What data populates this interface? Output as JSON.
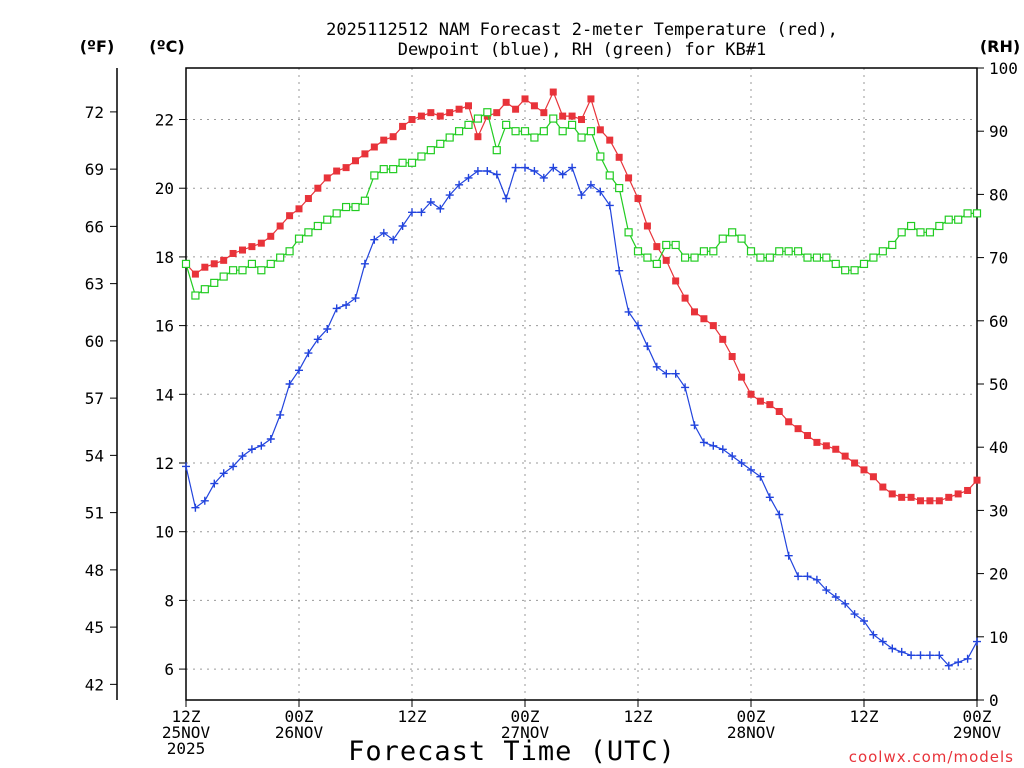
{
  "chart_data": {
    "type": "line",
    "title_line1": "2025112512 NAM Forecast 2-meter Temperature (red),",
    "title_line2": "Dewpoint (blue), RH (green) for KB#1",
    "xlabel": "Forecast Time (UTC)",
    "credit": "coolwx.com/models",
    "units": {
      "fahrenheit": "(ºF)",
      "celsius": "(ºC)",
      "rh": "(RH)"
    },
    "y_celsius": {
      "lim": [
        5.1,
        23.5
      ],
      "ticks": [
        6,
        8,
        10,
        12,
        14,
        16,
        18,
        20,
        22
      ]
    },
    "y_fahrenheit": {
      "ticks": [
        42,
        45,
        48,
        51,
        54,
        57,
        60,
        63,
        66,
        69,
        72
      ]
    },
    "y_rh": {
      "lim": [
        0,
        100
      ],
      "ticks": [
        0,
        10,
        20,
        30,
        40,
        50,
        60,
        70,
        80,
        90,
        100
      ]
    },
    "x_hours": {
      "lim": [
        0,
        84
      ]
    },
    "x_ticks": [
      {
        "hour": 0,
        "lines": [
          "12Z",
          "25NOV",
          "2025"
        ]
      },
      {
        "hour": 12,
        "lines": [
          "00Z",
          "26NOV"
        ]
      },
      {
        "hour": 24,
        "lines": [
          "12Z"
        ]
      },
      {
        "hour": 36,
        "lines": [
          "00Z",
          "27NOV"
        ]
      },
      {
        "hour": 48,
        "lines": [
          "12Z"
        ]
      },
      {
        "hour": 60,
        "lines": [
          "00Z",
          "28NOV"
        ]
      },
      {
        "hour": 72,
        "lines": [
          "12Z"
        ]
      },
      {
        "hour": 84,
        "lines": [
          "00Z",
          "29NOV"
        ]
      }
    ],
    "series": [
      {
        "name": "Temperature",
        "axis": "celsius",
        "color": "#e8333a",
        "marker": "filled-square",
        "hours": [
          0,
          1,
          2,
          3,
          4,
          5,
          6,
          7,
          8,
          9,
          10,
          11,
          12,
          13,
          14,
          15,
          16,
          17,
          18,
          19,
          20,
          21,
          22,
          23,
          24,
          25,
          26,
          27,
          28,
          29,
          30,
          31,
          32,
          33,
          34,
          35,
          36,
          37,
          38,
          39,
          40,
          41,
          42,
          43,
          44,
          45,
          46,
          47,
          48,
          49,
          50,
          51,
          52,
          53,
          54,
          55,
          56,
          57,
          58,
          59,
          60,
          61,
          62,
          63,
          64,
          65,
          66,
          67,
          68,
          69,
          70,
          71,
          72,
          73,
          74,
          75,
          76,
          77,
          78,
          79,
          80,
          81,
          82,
          83,
          84
        ],
        "values": [
          17.8,
          17.5,
          17.7,
          17.8,
          17.9,
          18.1,
          18.2,
          18.3,
          18.4,
          18.6,
          18.9,
          19.2,
          19.4,
          19.7,
          20.0,
          20.3,
          20.5,
          20.6,
          20.8,
          21.0,
          21.2,
          21.4,
          21.5,
          21.8,
          22.0,
          22.1,
          22.2,
          22.1,
          22.2,
          22.3,
          22.4,
          21.5,
          22.1,
          22.2,
          22.5,
          22.3,
          22.6,
          22.4,
          22.2,
          22.8,
          22.1,
          22.1,
          22.0,
          22.6,
          21.7,
          21.4,
          20.9,
          20.3,
          19.7,
          18.9,
          18.3,
          17.9,
          17.3,
          16.8,
          16.4,
          16.2,
          16.0,
          15.6,
          15.1,
          14.5,
          14.0,
          13.8,
          13.7,
          13.5,
          13.2,
          13.0,
          12.8,
          12.6,
          12.5,
          12.4,
          12.2,
          12.0,
          11.8,
          11.6,
          11.3,
          11.1,
          11.0,
          11.0,
          10.9,
          10.9,
          10.9,
          11.0,
          11.1,
          11.2,
          11.5
        ]
      },
      {
        "name": "Dewpoint",
        "axis": "celsius",
        "color": "#2244dd",
        "marker": "plus",
        "hours": [
          0,
          1,
          2,
          3,
          4,
          5,
          6,
          7,
          8,
          9,
          10,
          11,
          12,
          13,
          14,
          15,
          16,
          17,
          18,
          19,
          20,
          21,
          22,
          23,
          24,
          25,
          26,
          27,
          28,
          29,
          30,
          31,
          32,
          33,
          34,
          35,
          36,
          37,
          38,
          39,
          40,
          41,
          42,
          43,
          44,
          45,
          46,
          47,
          48,
          49,
          50,
          51,
          52,
          53,
          54,
          55,
          56,
          57,
          58,
          59,
          60,
          61,
          62,
          63,
          64,
          65,
          66,
          67,
          68,
          69,
          70,
          71,
          72,
          73,
          74,
          75,
          76,
          77,
          78,
          79,
          80,
          81,
          82,
          83,
          84
        ],
        "values": [
          11.9,
          10.7,
          10.9,
          11.4,
          11.7,
          11.9,
          12.2,
          12.4,
          12.5,
          12.7,
          13.4,
          14.3,
          14.7,
          15.2,
          15.6,
          15.9,
          16.5,
          16.6,
          16.8,
          17.8,
          18.5,
          18.7,
          18.5,
          18.9,
          19.3,
          19.3,
          19.6,
          19.4,
          19.8,
          20.1,
          20.3,
          20.5,
          20.5,
          20.4,
          19.7,
          20.6,
          20.6,
          20.5,
          20.3,
          20.6,
          20.4,
          20.6,
          19.8,
          20.1,
          19.9,
          19.5,
          17.6,
          16.4,
          16.0,
          15.4,
          14.8,
          14.6,
          14.6,
          14.2,
          13.1,
          12.6,
          12.5,
          12.4,
          12.2,
          12.0,
          11.8,
          11.6,
          11.0,
          10.5,
          9.3,
          8.7,
          8.7,
          8.6,
          8.3,
          8.1,
          7.9,
          7.6,
          7.4,
          7.0,
          6.8,
          6.6,
          6.5,
          6.4,
          6.4,
          6.4,
          6.4,
          6.1,
          6.2,
          6.3,
          6.8
        ]
      },
      {
        "name": "RH",
        "axis": "rh",
        "color": "#22cc22",
        "marker": "open-square",
        "hours": [
          0,
          1,
          2,
          3,
          4,
          5,
          6,
          7,
          8,
          9,
          10,
          11,
          12,
          13,
          14,
          15,
          16,
          17,
          18,
          19,
          20,
          21,
          22,
          23,
          24,
          25,
          26,
          27,
          28,
          29,
          30,
          31,
          32,
          33,
          34,
          35,
          36,
          37,
          38,
          39,
          40,
          41,
          42,
          43,
          44,
          45,
          46,
          47,
          48,
          49,
          50,
          51,
          52,
          53,
          54,
          55,
          56,
          57,
          58,
          59,
          60,
          61,
          62,
          63,
          64,
          65,
          66,
          67,
          68,
          69,
          70,
          71,
          72,
          73,
          74,
          75,
          76,
          77,
          78,
          79,
          80,
          81,
          82,
          83,
          84
        ],
        "values": [
          69,
          64,
          65,
          66,
          67,
          68,
          68,
          69,
          68,
          69,
          70,
          71,
          73,
          74,
          75,
          76,
          77,
          78,
          78,
          79,
          83,
          84,
          84,
          85,
          85,
          86,
          87,
          88,
          89,
          90,
          91,
          92,
          93,
          87,
          91,
          90,
          90,
          89,
          90,
          92,
          90,
          91,
          89,
          90,
          86,
          83,
          81,
          74,
          71,
          70,
          69,
          72,
          72,
          70,
          70,
          71,
          71,
          73,
          74,
          73,
          71,
          70,
          70,
          71,
          71,
          71,
          70,
          70,
          70,
          69,
          68,
          68,
          69,
          70,
          71,
          72,
          74,
          75,
          74,
          74,
          75,
          76,
          76,
          77,
          77
        ]
      }
    ]
  }
}
